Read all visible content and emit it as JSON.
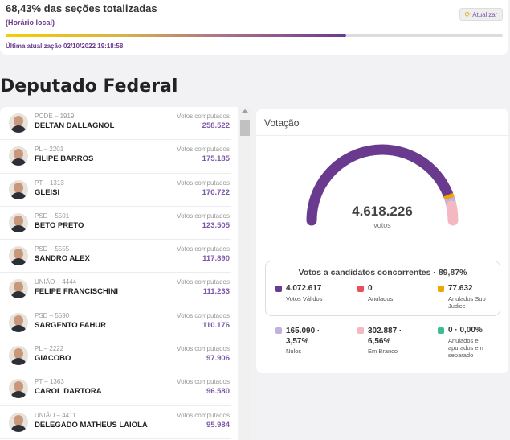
{
  "header": {
    "title": "68,43% das seções totalizadas",
    "local_time_label": "(Horário local)",
    "refresh_label": "Atualizar",
    "progress_fraction": 0.6843,
    "last_update": "Última atualização 02/10/2022 19:18:58",
    "bar_colors": [
      "#f1d100",
      "#6a3a8f"
    ]
  },
  "section_title": "Deputado Federal",
  "candidates": [
    {
      "party": "PODE – 1919",
      "name": "DELTAN DALLAGNOL",
      "votes_label": "Votos computados",
      "votes": "258.522"
    },
    {
      "party": "PL – 2201",
      "name": "FILIPE BARROS",
      "votes_label": "Votos computados",
      "votes": "175.185"
    },
    {
      "party": "PT – 1313",
      "name": "GLEISI",
      "votes_label": "Votos computados",
      "votes": "170.722"
    },
    {
      "party": "PSD – 5501",
      "name": "BETO PRETO",
      "votes_label": "Votos computados",
      "votes": "123.505"
    },
    {
      "party": "PSD – 5555",
      "name": "SANDRO ALEX",
      "votes_label": "Votos computados",
      "votes": "117.890"
    },
    {
      "party": "UNIÃO – 4444",
      "name": "FELIPE FRANCISCHINI",
      "votes_label": "Votos computados",
      "votes": "111.233"
    },
    {
      "party": "PSD – 5590",
      "name": "SARGENTO FAHUR",
      "votes_label": "Votos computados",
      "votes": "110.176"
    },
    {
      "party": "PL – 2222",
      "name": "GIACOBO",
      "votes_label": "Votos computados",
      "votes": "97.906"
    },
    {
      "party": "PT – 1363",
      "name": "CAROL DARTORA",
      "votes_label": "Votos computados",
      "votes": "96.580"
    },
    {
      "party": "UNIÃO – 4411",
      "name": "DELEGADO MATHEUS LAIOLA",
      "votes_label": "Votos computados",
      "votes": "95.984"
    }
  ],
  "votacao": {
    "title": "Votação",
    "total": "4.618.226",
    "total_label": "votos",
    "gauge_fractions": {
      "validos": 0.8819,
      "anulados_sub_judice": 0.0168,
      "nulos": 0.0357,
      "em_branco": 0.0656
    },
    "concorrentes_title": "Votos a candidatos concorrentes · 89,87%",
    "stats": [
      {
        "value": "4.072.617",
        "label": "Votos Válidos",
        "color": "#6a3a8f"
      },
      {
        "value": "0",
        "label": "Anulados",
        "color": "#e8505b"
      },
      {
        "value": "77.632",
        "label": "Anulados Sub Judice",
        "color": "#f0a500"
      },
      {
        "value": "165.090 · 3,57%",
        "label": "Nulos",
        "color": "#c4b0dc"
      },
      {
        "value": "302.887 · 6,56%",
        "label": "Em Branco",
        "color": "#f4b8c0"
      },
      {
        "value": "0 · 0,00%",
        "label": "Anulados e apurados em separado",
        "color": "#3cbf8f"
      }
    ]
  }
}
